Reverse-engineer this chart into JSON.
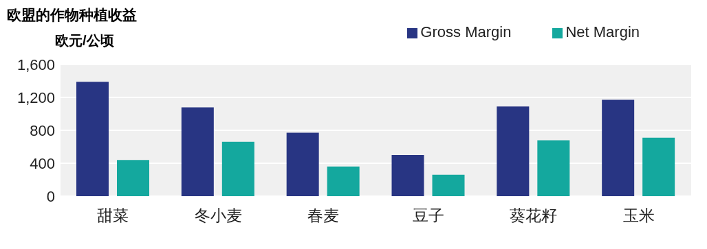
{
  "chart_data": {
    "type": "bar",
    "title": "欧盟的作物种植收益",
    "ylabel": "欧元/公顷",
    "categories": [
      "甜菜",
      "冬小麦",
      "春麦",
      "豆子",
      "葵花籽",
      "玉米"
    ],
    "series": [
      {
        "name": "Gross Margin",
        "color": "#283583",
        "values": [
          1390,
          1080,
          770,
          500,
          1090,
          1170
        ]
      },
      {
        "name": "Net Margin",
        "color": "#14a89e",
        "values": [
          440,
          660,
          360,
          260,
          680,
          710
        ]
      }
    ],
    "ylim": [
      0,
      1600
    ],
    "yticks": [
      0,
      {
        "value": 400,
        "label": "400"
      },
      {
        "value": 800,
        "label": "800"
      },
      {
        "value": 1200,
        "label": "1,200"
      },
      {
        "value": 1600,
        "label": "1,600"
      }
    ],
    "grid": "y",
    "legend": "top right"
  }
}
